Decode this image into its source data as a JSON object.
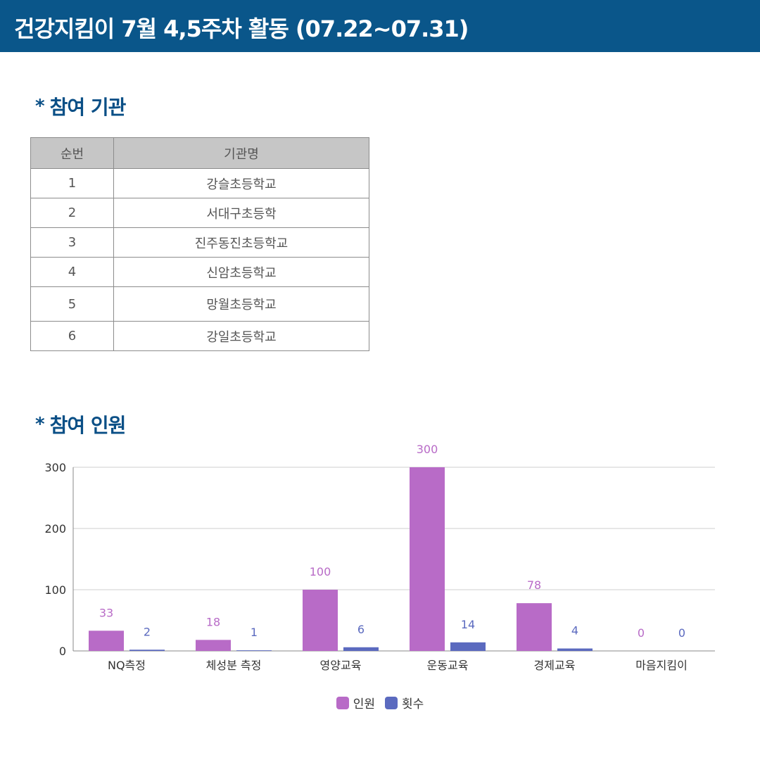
{
  "header": {
    "title": "건강지킴이 7월 4,5주차 활동 (07.22~07.31)"
  },
  "section_orgs": {
    "bullet": "*",
    "title": "참여 기관"
  },
  "org_table": {
    "headers": [
      "순번",
      "기관명"
    ],
    "rows": [
      [
        "1",
        "강슬초등학교"
      ],
      [
        "2",
        "서대구초등학"
      ],
      [
        "3",
        "진주동진초등학교"
      ],
      [
        "4",
        "신암초등학교"
      ],
      [
        "5",
        "망월초등학교"
      ],
      [
        "6",
        "강일초등학교"
      ]
    ]
  },
  "section_participants": {
    "bullet": "*",
    "title": "참여 인원"
  },
  "chart_data": {
    "type": "bar",
    "categories": [
      "NQ측정",
      "체성분 측정",
      "영양교육",
      "운동교육",
      "경제교육",
      "마음지킴이"
    ],
    "series": [
      {
        "name": "인원",
        "values": [
          33,
          18,
          100,
          300,
          78,
          0
        ],
        "color": "#b86bc7"
      },
      {
        "name": "횟수",
        "values": [
          2,
          1,
          6,
          14,
          4,
          0
        ],
        "color": "#5b6abf"
      }
    ],
    "yticks": [
      0,
      100,
      200,
      300
    ],
    "ylim": [
      0,
      300
    ],
    "grid": true,
    "legend": "bottom-center",
    "data_labels": true
  }
}
